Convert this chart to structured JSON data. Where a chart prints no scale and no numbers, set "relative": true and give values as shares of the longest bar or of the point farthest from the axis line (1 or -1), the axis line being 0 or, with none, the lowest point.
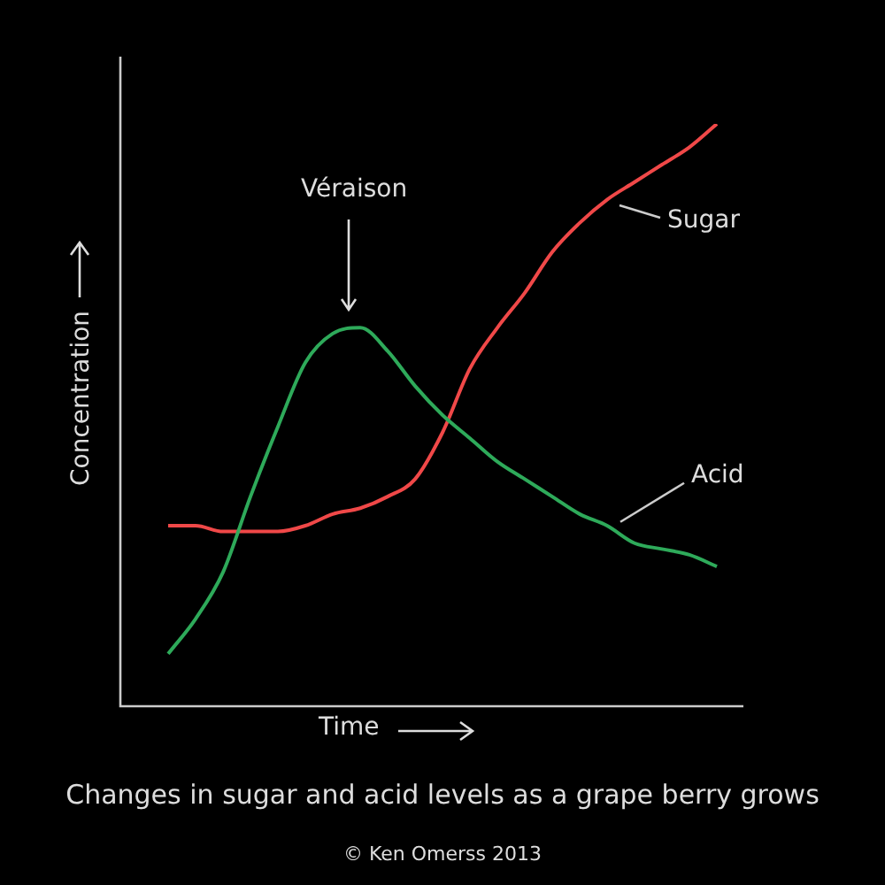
{
  "chart_data": {
    "type": "line",
    "title": "Changes in sugar and acid levels as a grape berry grows",
    "xlabel": "Time",
    "ylabel": "Concentration",
    "relative": true,
    "legend": false,
    "marker": "none",
    "categories": [
      null,
      null,
      null,
      null,
      null,
      null,
      null,
      null,
      null,
      null,
      null,
      null,
      null,
      null,
      null,
      null,
      null,
      null,
      null,
      null,
      null
    ],
    "series": [
      {
        "name": "Acid",
        "color": "#2eaa5a",
        "values": [
          0.09,
          0.15,
          0.23,
          0.36,
          0.48,
          0.59,
          0.64,
          0.65,
          0.61,
          0.55,
          0.5,
          0.46,
          0.42,
          0.39,
          0.36,
          0.33,
          0.31,
          0.28,
          0.27,
          0.26,
          0.24
        ]
      },
      {
        "name": "Sugar",
        "color": "#f04848",
        "values": [
          0.31,
          0.31,
          0.3,
          0.3,
          0.3,
          0.31,
          0.33,
          0.34,
          0.36,
          0.39,
          0.47,
          0.58,
          0.65,
          0.71,
          0.78,
          0.83,
          0.87,
          0.9,
          0.93,
          0.96,
          1
        ]
      }
    ],
    "annotations": [
      "Véraison",
      "© Ken Omerss 2013"
    ]
  }
}
